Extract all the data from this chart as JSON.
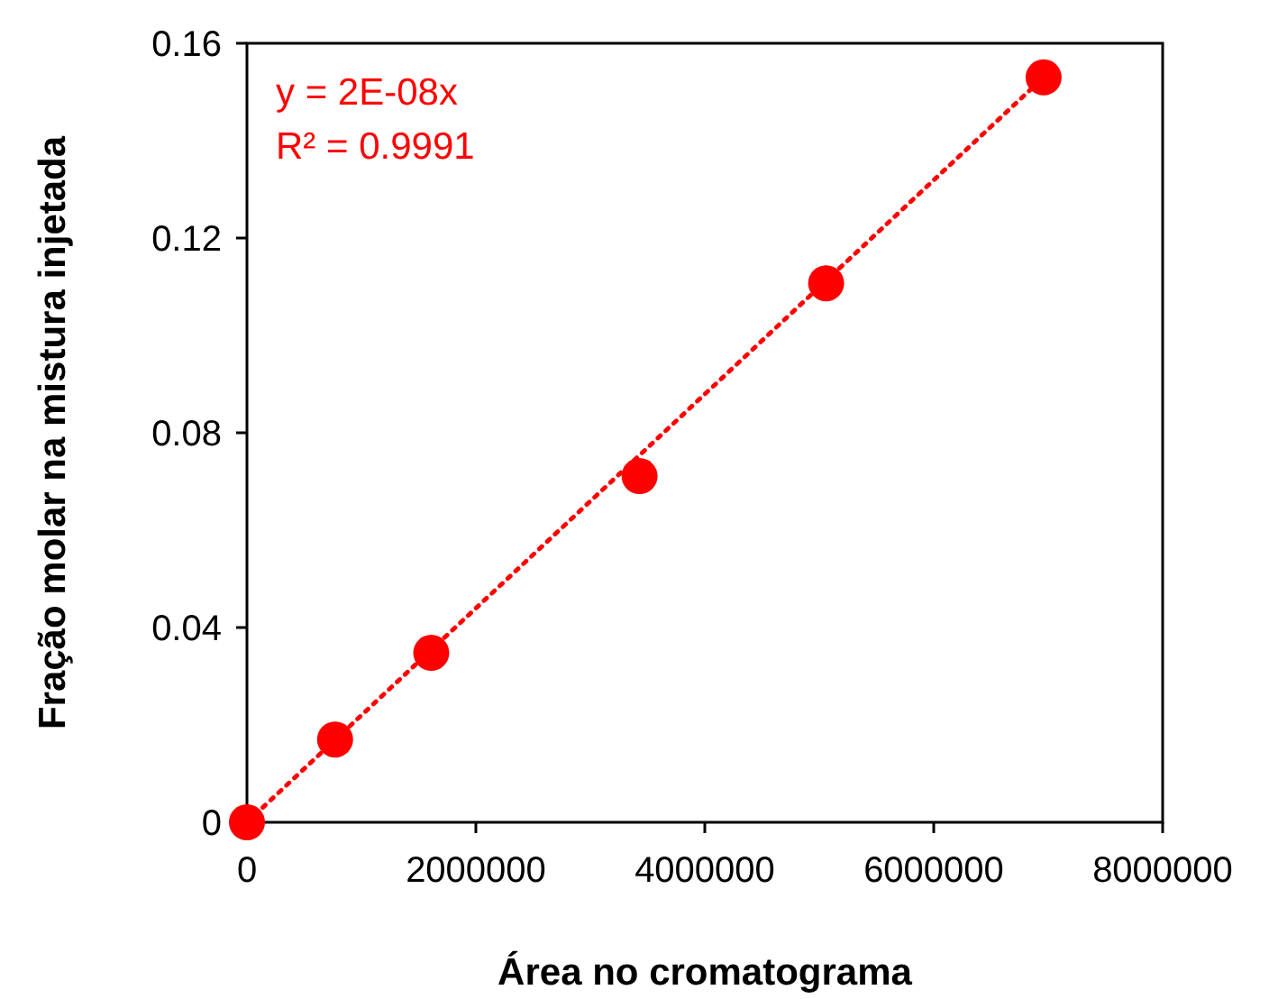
{
  "chart_data": {
    "type": "scatter",
    "xlabel": "Área no cromatograma",
    "ylabel": "Fração molar na mistura injetada",
    "annotations": [
      "y = 2E-08x",
      "R² = 0.9991"
    ],
    "xlim": [
      0,
      8000000
    ],
    "xticks": [
      0,
      2000000,
      4000000,
      6000000,
      8000000
    ],
    "ylim": [
      0,
      0.16
    ],
    "yticks": [
      0,
      0.04,
      0.08,
      0.12,
      0.16
    ],
    "grid": false,
    "series": [
      {
        "color": "#ff0000",
        "marker": "circle",
        "x": [
          0,
          770000,
          1610000,
          3430000,
          5060000,
          6960000
        ],
        "values": [
          0,
          0.017,
          0.0348,
          0.0711,
          0.1107,
          0.153
        ]
      },
      {
        "type": "line",
        "color": "#ff0000",
        "line_style": "dotted",
        "marker": "none",
        "x": [
          0,
          6960000
        ],
        "values": [
          0,
          0.153
        ]
      }
    ]
  }
}
